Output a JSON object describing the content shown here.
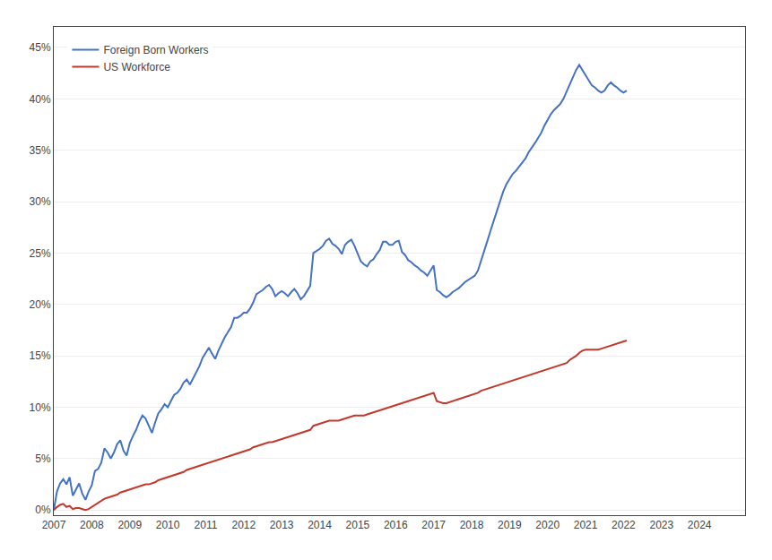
{
  "chart_data": {
    "type": "line",
    "x": [
      2007,
      2007.0833,
      2007.1667,
      2007.25,
      2007.3333,
      2007.4167,
      2007.5,
      2007.5833,
      2007.6667,
      2007.75,
      2007.8333,
      2007.9167,
      2008,
      2008.0833,
      2008.1667,
      2008.25,
      2008.3333,
      2008.4167,
      2008.5,
      2008.5833,
      2008.6667,
      2008.75,
      2008.8333,
      2008.9167,
      2009,
      2009.0833,
      2009.1667,
      2009.25,
      2009.3333,
      2009.4167,
      2009.5,
      2009.5833,
      2009.6667,
      2009.75,
      2009.8333,
      2009.9167,
      2010,
      2010.0833,
      2010.1667,
      2010.25,
      2010.3333,
      2010.4167,
      2010.5,
      2010.5833,
      2010.6667,
      2010.75,
      2010.8333,
      2010.9167,
      2011,
      2011.0833,
      2011.1667,
      2011.25,
      2011.3333,
      2011.4167,
      2011.5,
      2011.5833,
      2011.6667,
      2011.75,
      2011.8333,
      2011.9167,
      2012,
      2012.0833,
      2012.1667,
      2012.25,
      2012.3333,
      2012.4167,
      2012.5,
      2012.5833,
      2012.6667,
      2012.75,
      2012.8333,
      2012.9167,
      2013,
      2013.0833,
      2013.1667,
      2013.25,
      2013.3333,
      2013.4167,
      2013.5,
      2013.5833,
      2013.6667,
      2013.75,
      2013.8333,
      2013.9167,
      2014,
      2014.0833,
      2014.1667,
      2014.25,
      2014.3333,
      2014.4167,
      2014.5,
      2014.5833,
      2014.6667,
      2014.75,
      2014.8333,
      2014.9167,
      2015,
      2015.0833,
      2015.1667,
      2015.25,
      2015.3333,
      2015.4167,
      2015.5,
      2015.5833,
      2015.6667,
      2015.75,
      2015.8333,
      2015.9167,
      2016,
      2016.0833,
      2016.1667,
      2016.25,
      2016.3333,
      2016.4167,
      2016.5,
      2016.5833,
      2016.6667,
      2016.75,
      2016.8333,
      2016.9167,
      2017,
      2017.0833,
      2017.1667,
      2017.25,
      2017.3333,
      2017.4167,
      2017.5,
      2017.5833,
      2017.6667,
      2017.75,
      2017.8333,
      2017.9167,
      2018,
      2018.0833,
      2018.1667,
      2018.25,
      2018.3333,
      2018.4167,
      2018.5,
      2018.5833,
      2018.6667,
      2018.75,
      2018.8333,
      2018.9167,
      2019,
      2019.0833,
      2019.1667,
      2019.25,
      2019.3333,
      2019.4167,
      2019.5,
      2019.5833,
      2019.6667,
      2019.75,
      2019.8333,
      2019.9167,
      2020,
      2020.0833,
      2020.1667,
      2020.25,
      2020.3333,
      2020.4167,
      2020.5,
      2020.5833,
      2020.6667,
      2020.75,
      2020.8333,
      2020.9167,
      2021,
      2021.0833,
      2021.1667,
      2021.25,
      2021.3333,
      2021.4167,
      2021.5,
      2021.5833,
      2021.6667,
      2021.75,
      2021.8333,
      2021.9167,
      2022,
      2022.0833
    ],
    "series": [
      {
        "name": "Foreign Born Workers",
        "color": "#4472c4",
        "values": [
          0.0,
          0.018,
          0.026,
          0.03,
          0.025,
          0.032,
          0.014,
          0.02,
          0.026,
          0.016,
          0.01,
          0.018,
          0.024,
          0.038,
          0.04,
          0.046,
          0.06,
          0.056,
          0.05,
          0.056,
          0.064,
          0.068,
          0.058,
          0.053,
          0.065,
          0.072,
          0.078,
          0.086,
          0.092,
          0.089,
          0.082,
          0.075,
          0.085,
          0.094,
          0.098,
          0.103,
          0.1,
          0.106,
          0.112,
          0.114,
          0.118,
          0.124,
          0.127,
          0.122,
          0.128,
          0.133,
          0.14,
          0.148,
          0.153,
          0.158,
          0.152,
          0.147,
          0.155,
          0.162,
          0.168,
          0.173,
          0.178,
          0.187,
          0.187,
          0.189,
          0.192,
          0.192,
          0.196,
          0.202,
          0.21,
          0.212,
          0.214,
          0.217,
          0.219,
          0.215,
          0.208,
          0.211,
          0.213,
          0.211,
          0.208,
          0.212,
          0.215,
          0.211,
          0.205,
          0.208,
          0.213,
          0.218,
          0.25,
          0.252,
          0.254,
          0.257,
          0.262,
          0.264,
          0.259,
          0.257,
          0.254,
          0.249,
          0.258,
          0.261,
          0.263,
          0.257,
          0.249,
          0.242,
          0.239,
          0.237,
          0.242,
          0.244,
          0.249,
          0.253,
          0.261,
          0.261,
          0.258,
          0.258,
          0.261,
          0.262,
          0.251,
          0.248,
          0.243,
          0.241,
          0.238,
          0.236,
          0.233,
          0.231,
          0.228,
          0.233,
          0.238,
          0.214,
          0.212,
          0.209,
          0.207,
          0.209,
          0.212,
          0.214,
          0.216,
          0.219,
          0.222,
          0.224,
          0.226,
          0.228,
          0.233,
          0.242,
          0.252,
          0.262,
          0.272,
          0.282,
          0.292,
          0.302,
          0.31,
          0.317,
          0.322,
          0.327,
          0.33,
          0.334,
          0.338,
          0.342,
          0.348,
          0.352,
          0.357,
          0.362,
          0.367,
          0.374,
          0.38,
          0.385,
          0.389,
          0.392,
          0.395,
          0.4,
          0.407,
          0.413,
          0.42,
          0.428,
          0.433,
          0.428,
          0.423,
          0.418,
          0.413,
          0.411,
          0.408,
          0.406,
          0.408,
          0.413,
          0.416,
          0.413,
          0.411,
          0.408,
          0.406,
          0.408
        ]
      },
      {
        "name": "US Workforce",
        "color": "#c0392b",
        "values": [
          0.0,
          0.003,
          0.005,
          0.006,
          0.003,
          0.004,
          0.001,
          0.002,
          0.002,
          0.001,
          0.0,
          0.001,
          0.003,
          0.005,
          0.007,
          0.009,
          0.011,
          0.012,
          0.013,
          0.014,
          0.015,
          0.017,
          0.018,
          0.019,
          0.02,
          0.021,
          0.022,
          0.023,
          0.024,
          0.025,
          0.025,
          0.026,
          0.027,
          0.029,
          0.03,
          0.031,
          0.032,
          0.033,
          0.034,
          0.035,
          0.036,
          0.037,
          0.039,
          0.04,
          0.041,
          0.042,
          0.043,
          0.044,
          0.045,
          0.046,
          0.047,
          0.048,
          0.049,
          0.05,
          0.051,
          0.052,
          0.053,
          0.054,
          0.055,
          0.056,
          0.057,
          0.058,
          0.059,
          0.061,
          0.062,
          0.063,
          0.064,
          0.065,
          0.066,
          0.066,
          0.067,
          0.068,
          0.069,
          0.07,
          0.071,
          0.072,
          0.073,
          0.074,
          0.075,
          0.076,
          0.077,
          0.078,
          0.082,
          0.083,
          0.084,
          0.085,
          0.086,
          0.087,
          0.087,
          0.087,
          0.087,
          0.088,
          0.089,
          0.09,
          0.091,
          0.092,
          0.092,
          0.092,
          0.092,
          0.093,
          0.094,
          0.095,
          0.096,
          0.097,
          0.098,
          0.099,
          0.1,
          0.101,
          0.102,
          0.103,
          0.104,
          0.105,
          0.106,
          0.107,
          0.108,
          0.109,
          0.11,
          0.111,
          0.112,
          0.113,
          0.114,
          0.106,
          0.105,
          0.104,
          0.104,
          0.105,
          0.106,
          0.107,
          0.108,
          0.109,
          0.11,
          0.111,
          0.112,
          0.113,
          0.114,
          0.116,
          0.117,
          0.118,
          0.119,
          0.12,
          0.121,
          0.122,
          0.123,
          0.124,
          0.125,
          0.126,
          0.127,
          0.128,
          0.129,
          0.13,
          0.131,
          0.132,
          0.133,
          0.134,
          0.135,
          0.136,
          0.137,
          0.138,
          0.139,
          0.14,
          0.141,
          0.142,
          0.143,
          0.146,
          0.148,
          0.15,
          0.153,
          0.155,
          0.156,
          0.156,
          0.156,
          0.156,
          0.156,
          0.157,
          0.158,
          0.159,
          0.16,
          0.161,
          0.162,
          0.163,
          0.164,
          0.165
        ]
      }
    ],
    "xlim": [
      2007,
      2025.2
    ],
    "xticks": [
      2007,
      2008,
      2009,
      2010,
      2011,
      2012,
      2013,
      2014,
      2015,
      2016,
      2017,
      2018,
      2019,
      2020,
      2021,
      2022,
      2023,
      2024
    ],
    "ylim": [
      -0.005,
      0.47
    ],
    "yticks": [
      {
        "value": 0.0,
        "label": "0%"
      },
      {
        "value": 0.05,
        "label": "5%"
      },
      {
        "value": 0.1,
        "label": "10%"
      },
      {
        "value": 0.15,
        "label": "15%"
      },
      {
        "value": 0.2,
        "label": "20%"
      },
      {
        "value": 0.25,
        "label": "25%"
      },
      {
        "value": 0.3,
        "label": "30%"
      },
      {
        "value": 0.35,
        "label": "35%"
      },
      {
        "value": 0.4,
        "label": "40%"
      },
      {
        "value": 0.45,
        "label": "45%"
      }
    ],
    "grid": true,
    "legend": "upper left"
  }
}
